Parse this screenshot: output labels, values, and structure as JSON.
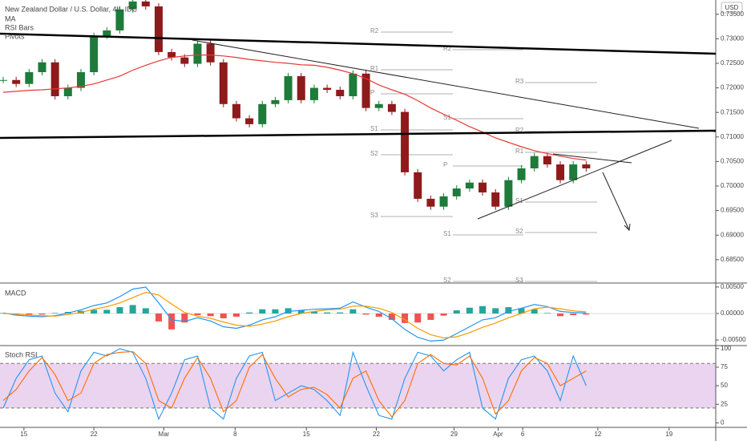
{
  "chart_data": [
    {
      "type": "candlestick",
      "title": "New Zealand Dollar / U.S. Dollar, 4h, IDC",
      "indicators": [
        "MA",
        "RSI Bars",
        "Pivots"
      ],
      "currency": "USD",
      "up_color": "#1e7b3a",
      "down_color": "#8e1b1b",
      "close": [
        0.7216,
        0.7208,
        0.7232,
        0.7252,
        0.7183,
        0.72,
        0.7232,
        0.7306,
        0.7317,
        0.736,
        0.7376,
        0.7366,
        0.7273,
        0.7262,
        0.7249,
        0.729,
        0.7252,
        0.7167,
        0.7138,
        0.7126,
        0.7167,
        0.7175,
        0.7224,
        0.7175,
        0.72,
        0.7196,
        0.7183,
        0.7229,
        0.7159,
        0.7167,
        0.7151,
        0.7028,
        0.6974,
        0.6958,
        0.6979,
        0.6995,
        0.7007,
        0.6987,
        0.6958,
        0.7012,
        0.7036,
        0.7061,
        0.7044,
        0.7012,
        0.7044,
        0.7036
      ],
      "ma": {
        "color": "#e53935",
        "values": [
          0.7191,
          0.7193,
          0.7195,
          0.7196,
          0.7198,
          0.72,
          0.7203,
          0.7208,
          0.7216,
          0.7224,
          0.7236,
          0.7246,
          0.7255,
          0.7262,
          0.7265,
          0.7267,
          0.7267,
          0.7265,
          0.7262,
          0.7258,
          0.7255,
          0.7252,
          0.725,
          0.7247,
          0.7246,
          0.7242,
          0.7236,
          0.7229,
          0.7219,
          0.7206,
          0.7196,
          0.7187,
          0.7174,
          0.7159,
          0.7146,
          0.7134,
          0.7121,
          0.711,
          0.7098,
          0.7089,
          0.708,
          0.7072,
          0.7066,
          0.7061,
          0.7056,
          0.7053
        ]
      },
      "pivot_labels": [
        "R2",
        "R1",
        "P",
        "S1",
        "S2",
        "S3",
        "R2",
        "S1",
        "P",
        "S1",
        "S2",
        "R3",
        "R2",
        "R1",
        "S1",
        "S2",
        "S3"
      ],
      "xlim": [
        0,
        55
      ],
      "ylim": [
        0.6804,
        0.7379
      ],
      "yticks": [
        {
          "value": 0.735,
          "label": "0.73500"
        },
        {
          "value": 0.73,
          "label": "0.73000"
        },
        {
          "value": 0.725,
          "label": "0.72500"
        },
        {
          "value": 0.72,
          "label": "0.72000"
        },
        {
          "value": 0.715,
          "label": "0.71500"
        },
        {
          "value": 0.71,
          "label": "0.71000"
        },
        {
          "value": 0.705,
          "label": "0.70500"
        },
        {
          "value": 0.7,
          "label": "0.70000"
        },
        {
          "value": 0.695,
          "label": "0.69500"
        },
        {
          "value": 0.69,
          "label": "0.69000"
        },
        {
          "value": 0.685,
          "label": "0.68500"
        }
      ]
    },
    {
      "type": "macd",
      "title": "MACD",
      "xlim": [
        0,
        55
      ],
      "ylim": [
        -0.0059,
        0.0056
      ],
      "series": [
        {
          "color": "#2196f3",
          "values": [
            0.0001,
            -0.0003,
            -0.0005,
            -0.0006,
            -0.0004,
            0.0001,
            0.0007,
            0.0015,
            0.002,
            0.0032,
            0.0046,
            0.005,
            0.002,
            -0.0012,
            -0.0015,
            -0.0008,
            -0.0014,
            -0.0025,
            -0.0028,
            -0.0022,
            -0.0012,
            -0.0006,
            0.0004,
            0.0006,
            0.0008,
            0.0009,
            0.001,
            0.0022,
            0.0012,
            0.0004,
            -0.001,
            -0.003,
            -0.0045,
            -0.0052,
            -0.005,
            -0.0038,
            -0.0025,
            -0.0012,
            -0.0008,
            0.0004,
            0.001,
            0.0017,
            0.0013,
            0.0004,
            0.0002,
            0.0001
          ]
        },
        {
          "color": "#ff9800",
          "values": [
            0.0,
            -0.0001,
            -0.0003,
            -0.0004,
            -0.0005,
            -0.0002,
            0.0002,
            0.0008,
            0.0013,
            0.002,
            0.003,
            0.004,
            0.0035,
            0.0018,
            0.0002,
            -0.0005,
            -0.0009,
            -0.0016,
            -0.0022,
            -0.0024,
            -0.002,
            -0.0014,
            -0.0006,
            0.0,
            0.0004,
            0.0007,
            0.0008,
            0.0014,
            0.0014,
            0.001,
            0.0002,
            -0.0012,
            -0.0028,
            -0.004,
            -0.0046,
            -0.0044,
            -0.0036,
            -0.0026,
            -0.0018,
            -0.0008,
            0.0,
            0.0009,
            0.0012,
            0.0009,
            0.0005,
            0.0003
          ]
        }
      ],
      "histogram": {
        "up_color": "#26a69a",
        "down_color": "#ef5350",
        "values": [
          0.0001,
          -0.0002,
          -0.0002,
          -0.0002,
          0.0001,
          0.0003,
          0.0005,
          0.0007,
          0.0007,
          0.0012,
          0.0016,
          0.001,
          -0.0015,
          -0.003,
          -0.0017,
          -0.0003,
          -0.0005,
          -0.0009,
          -0.0006,
          0.0002,
          0.0008,
          0.0008,
          0.001,
          0.0006,
          0.0004,
          0.0002,
          0.0002,
          0.0008,
          -0.0002,
          -0.0006,
          -0.0012,
          -0.0018,
          -0.0017,
          -0.0012,
          -0.0004,
          0.0006,
          0.0011,
          0.0014,
          0.001,
          0.0012,
          0.001,
          0.0008,
          0.0001,
          -0.0005,
          -0.0003,
          -0.0002
        ]
      },
      "yticks": [
        {
          "value": 0.005,
          "label": "0.00500"
        },
        {
          "value": 0,
          "label": "0.00000"
        },
        {
          "value": -0.005,
          "label": "-0.00500"
        }
      ]
    },
    {
      "type": "stoch",
      "title": "Stoch RSI",
      "xlim": [
        0,
        55
      ],
      "ylim": [
        -5,
        103
      ],
      "band": [
        20,
        80
      ],
      "band_color": "#9c27b0",
      "series": [
        {
          "color": "#2196f3",
          "values": [
            20,
            60,
            85,
            90,
            40,
            15,
            70,
            95,
            90,
            100,
            95,
            60,
            5,
            40,
            85,
            90,
            20,
            5,
            60,
            90,
            95,
            30,
            40,
            50,
            45,
            30,
            10,
            95,
            50,
            10,
            5,
            60,
            95,
            90,
            70,
            85,
            95,
            20,
            5,
            60,
            85,
            90,
            70,
            30,
            90,
            50
          ]
        },
        {
          "color": "#ff6d00",
          "values": [
            30,
            45,
            70,
            88,
            65,
            30,
            40,
            80,
            92,
            95,
            96,
            80,
            30,
            20,
            60,
            88,
            60,
            15,
            30,
            75,
            92,
            60,
            35,
            45,
            48,
            38,
            20,
            60,
            70,
            30,
            8,
            30,
            80,
            92,
            80,
            78,
            90,
            60,
            12,
            30,
            70,
            88,
            80,
            50,
            60,
            70
          ]
        }
      ],
      "yticks": [
        100,
        75,
        50,
        25,
        0
      ],
      "xticks": [
        {
          "value": 1.6,
          "label": "15"
        },
        {
          "value": 7.0,
          "label": "22"
        },
        {
          "value": 12.4,
          "label": "Mar"
        },
        {
          "value": 17.9,
          "label": "8"
        },
        {
          "value": 23.4,
          "label": "15"
        },
        {
          "value": 28.8,
          "label": "22"
        },
        {
          "value": 34.8,
          "label": "29"
        },
        {
          "value": 38.2,
          "label": "Apr"
        },
        {
          "value": 40.1,
          "label": "6"
        },
        {
          "value": 45.9,
          "label": "12"
        },
        {
          "value": 51.4,
          "label": "19"
        }
      ]
    }
  ]
}
